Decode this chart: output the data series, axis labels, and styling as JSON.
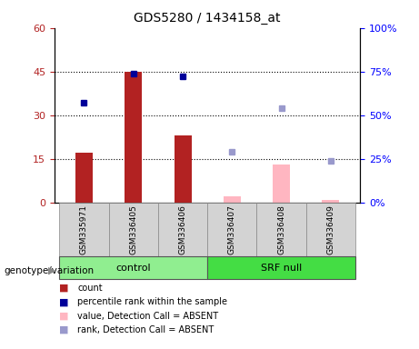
{
  "title": "GDS5280 / 1434158_at",
  "samples": [
    "GSM335971",
    "GSM336405",
    "GSM336406",
    "GSM336407",
    "GSM336408",
    "GSM336409"
  ],
  "groups": [
    "control",
    "control",
    "control",
    "SRF null",
    "SRF null",
    "SRF null"
  ],
  "count_present": [
    17,
    45,
    23,
    null,
    null,
    null
  ],
  "count_absent": [
    null,
    null,
    null,
    2,
    13,
    1
  ],
  "rank_present_pct": [
    57,
    74,
    72,
    null,
    null,
    null
  ],
  "rank_absent_pct": [
    null,
    null,
    null,
    29,
    54,
    24
  ],
  "ylim_left": [
    0,
    60
  ],
  "ylim_right": [
    0,
    100
  ],
  "yticks_left": [
    0,
    15,
    30,
    45,
    60
  ],
  "yticks_right": [
    0,
    25,
    50,
    75,
    100
  ],
  "ytick_labels_left": [
    "0",
    "15",
    "30",
    "45",
    "60"
  ],
  "ytick_labels_right": [
    "0%",
    "25%",
    "50%",
    "75%",
    "100%"
  ],
  "color_bar_present": "#B22222",
  "color_bar_absent": "#FFB6C1",
  "color_dot_present": "#000099",
  "color_dot_absent": "#9999CC",
  "group_colors": {
    "control": "#90EE90",
    "SRF null": "#44DD44"
  },
  "group_label": "genotype/variation",
  "legend_labels": [
    "count",
    "percentile rank within the sample",
    "value, Detection Call = ABSENT",
    "rank, Detection Call = ABSENT"
  ],
  "legend_colors": [
    "#B22222",
    "#000099",
    "#FFB6C1",
    "#9999CC"
  ]
}
